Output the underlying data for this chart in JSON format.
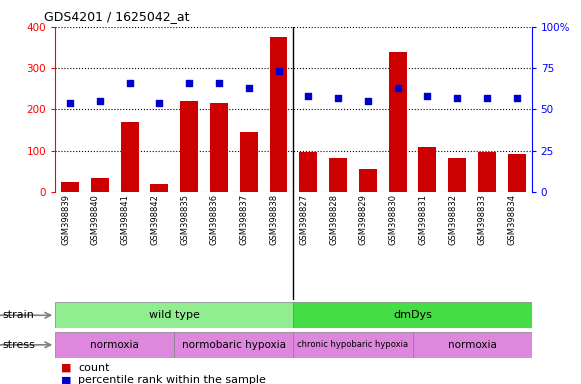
{
  "title": "GDS4201 / 1625042_at",
  "samples": [
    "GSM398839",
    "GSM398840",
    "GSM398841",
    "GSM398842",
    "GSM398835",
    "GSM398836",
    "GSM398837",
    "GSM398838",
    "GSM398827",
    "GSM398828",
    "GSM398829",
    "GSM398830",
    "GSM398831",
    "GSM398832",
    "GSM398833",
    "GSM398834"
  ],
  "counts": [
    25,
    35,
    170,
    20,
    220,
    215,
    145,
    375,
    97,
    83,
    55,
    340,
    110,
    83,
    97,
    93
  ],
  "percentile": [
    54,
    55,
    66,
    54,
    66,
    66,
    63,
    73,
    58,
    57,
    55,
    63,
    58,
    57,
    57,
    57
  ],
  "strain_groups": [
    {
      "label": "wild type",
      "start": 0,
      "end": 8,
      "color": "#90ee90"
    },
    {
      "label": "dmDys",
      "start": 8,
      "end": 16,
      "color": "#44dd44"
    }
  ],
  "stress_boundaries": [
    0,
    4,
    8,
    12,
    16
  ],
  "stress_labels": [
    "normoxia",
    "normobaric hypoxia",
    "chronic hypobaric hypoxia",
    "normoxia"
  ],
  "stress_color": "#dd88dd",
  "bar_color": "#cc0000",
  "dot_color": "#0000cc",
  "left_yticks": [
    0,
    100,
    200,
    300,
    400
  ],
  "right_yticklabels": [
    "0",
    "25",
    "50",
    "75",
    "100%"
  ]
}
